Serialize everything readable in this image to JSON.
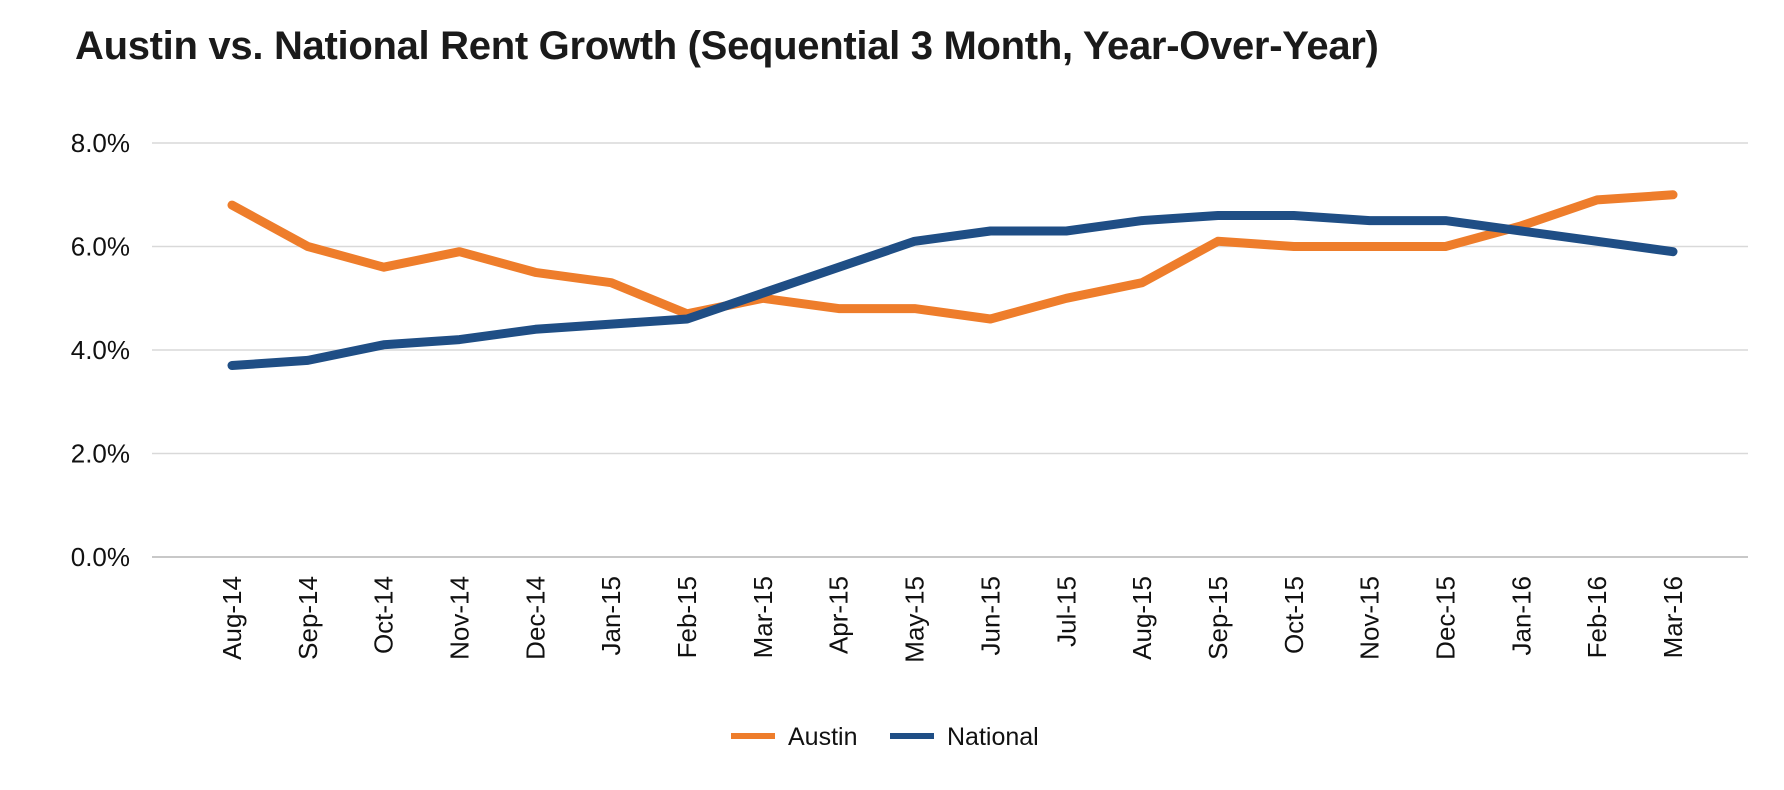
{
  "chart_data": {
    "type": "line",
    "title": "Austin vs. National Rent Growth (Sequential 3 Month, Year-Over-Year)",
    "categories": [
      "Aug-14",
      "Sep-14",
      "Oct-14",
      "Nov-14",
      "Dec-14",
      "Jan-15",
      "Feb-15",
      "Mar-15",
      "Apr-15",
      "May-15",
      "Jun-15",
      "Jul-15",
      "Aug-15",
      "Sep-15",
      "Oct-15",
      "Nov-15",
      "Dec-15",
      "Jan-16",
      "Feb-16",
      "Mar-16"
    ],
    "series": [
      {
        "name": "Austin",
        "color": "#EE7D2B",
        "values": [
          6.8,
          6.0,
          5.6,
          5.9,
          5.5,
          5.3,
          4.7,
          5.0,
          4.8,
          4.8,
          4.6,
          5.0,
          5.3,
          6.1,
          6.0,
          6.0,
          6.0,
          6.4,
          6.9,
          7.0
        ]
      },
      {
        "name": "National",
        "color": "#1F4E85",
        "values": [
          3.7,
          3.8,
          4.1,
          4.2,
          4.4,
          4.5,
          4.6,
          5.1,
          5.6,
          6.1,
          6.3,
          6.3,
          6.5,
          6.6,
          6.6,
          6.5,
          6.5,
          6.3,
          6.1,
          5.9
        ]
      }
    ],
    "ylim": [
      0,
      8
    ],
    "yticks": [
      "0.0%",
      "2.0%",
      "4.0%",
      "6.0%",
      "8.0%"
    ],
    "grid": true,
    "legend": "bottom-center"
  }
}
